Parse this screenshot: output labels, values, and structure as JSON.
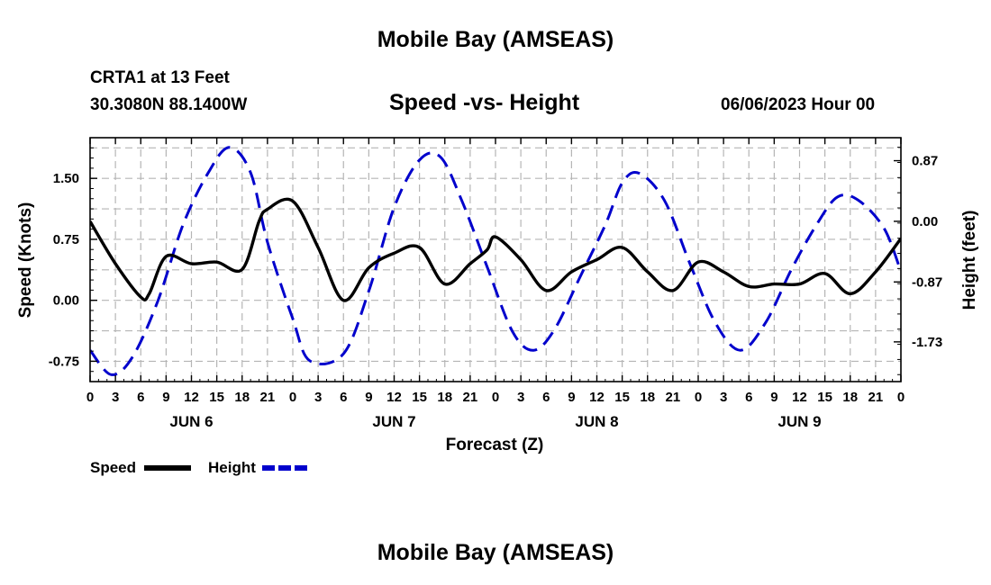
{
  "header": {
    "title": "Mobile Bay (AMSEAS)",
    "station": "CRTA1 at 13 Feet",
    "coords": "30.3080N  88.1400W",
    "subtitle": "Speed -vs- Height",
    "run_date": "06/06/2023 Hour 00"
  },
  "footer": {
    "title": "Mobile Bay (AMSEAS)"
  },
  "chart_data": {
    "type": "line",
    "title": "Speed -vs- Height",
    "xlabel": "Forecast (Z)",
    "ylabel": "Speed (Knots)",
    "y2label": "Height (feet)",
    "xlim": [
      0,
      96
    ],
    "ylim": [
      -1.0,
      2.0
    ],
    "y2lim": [
      -2.3,
      1.2
    ],
    "grid": true,
    "legend_position": "bottom-left",
    "x_ticks": [
      0,
      3,
      6,
      9,
      12,
      15,
      18,
      21,
      24,
      27,
      30,
      33,
      36,
      39,
      42,
      45,
      48,
      51,
      54,
      57,
      60,
      63,
      66,
      69,
      72,
      75,
      78,
      81,
      84,
      87,
      90,
      93,
      96
    ],
    "x_tick_labels": [
      "0",
      "3",
      "6",
      "9",
      "12",
      "15",
      "18",
      "21",
      "0",
      "3",
      "6",
      "9",
      "12",
      "15",
      "18",
      "21",
      "0",
      "3",
      "6",
      "9",
      "12",
      "15",
      "18",
      "21",
      "0",
      "3",
      "6",
      "9",
      "12",
      "15",
      "18",
      "21",
      "0"
    ],
    "day_labels": [
      {
        "x": 12,
        "label": "JUN 6"
      },
      {
        "x": 36,
        "label": "JUN 7"
      },
      {
        "x": 60,
        "label": "JUN 8"
      },
      {
        "x": 84,
        "label": "JUN 9"
      }
    ],
    "y_ticks": [
      -0.75,
      0.0,
      0.75,
      1.5
    ],
    "y_tick_labels": [
      "-0.75",
      "0.00",
      "0.75",
      "1.50"
    ],
    "y2_ticks": [
      -1.73,
      -0.87,
      0.0,
      0.87
    ],
    "y2_tick_labels": [
      "-1.73",
      "-0.87",
      "0.00",
      "0.87"
    ],
    "series": [
      {
        "name": "Speed",
        "axis": "left",
        "color": "#000000",
        "style": "solid",
        "x": [
          0,
          3,
          6,
          7,
          9,
          12,
          15,
          18,
          20,
          21,
          24,
          27,
          30,
          33,
          36,
          39,
          42,
          45,
          47,
          48,
          51,
          54,
          57,
          60,
          63,
          66,
          69,
          72,
          75,
          78,
          81,
          84,
          87,
          90,
          93,
          96
        ],
        "y": [
          0.97,
          0.45,
          0.04,
          0.08,
          0.54,
          0.45,
          0.47,
          0.38,
          0.97,
          1.12,
          1.22,
          0.65,
          0.0,
          0.4,
          0.58,
          0.65,
          0.2,
          0.45,
          0.62,
          0.78,
          0.5,
          0.12,
          0.35,
          0.5,
          0.65,
          0.35,
          0.12,
          0.47,
          0.35,
          0.17,
          0.2,
          0.2,
          0.33,
          0.08,
          0.35,
          0.76
        ]
      },
      {
        "name": "Height",
        "axis": "right",
        "color": "#0000cc",
        "style": "dashed",
        "x": [
          0,
          2.5,
          5,
          8,
          11,
          14,
          16.5,
          19,
          21,
          24,
          26,
          30,
          33,
          36,
          39,
          41.5,
          44,
          47,
          50,
          52.5,
          55,
          58,
          61,
          63,
          65,
          68,
          71,
          74,
          77,
          80,
          83,
          86,
          88.5,
          91,
          94,
          96
        ],
        "y": [
          -1.85,
          -2.2,
          -1.95,
          -1.15,
          -0.05,
          0.7,
          1.06,
          0.7,
          -0.3,
          -1.4,
          -2.0,
          -1.9,
          -1.0,
          0.2,
          0.88,
          0.92,
          0.3,
          -0.65,
          -1.58,
          -1.85,
          -1.55,
          -0.8,
          -0.05,
          0.55,
          0.69,
          0.3,
          -0.6,
          -1.45,
          -1.85,
          -1.45,
          -0.7,
          -0.05,
          0.35,
          0.3,
          -0.1,
          -0.72
        ]
      }
    ]
  }
}
